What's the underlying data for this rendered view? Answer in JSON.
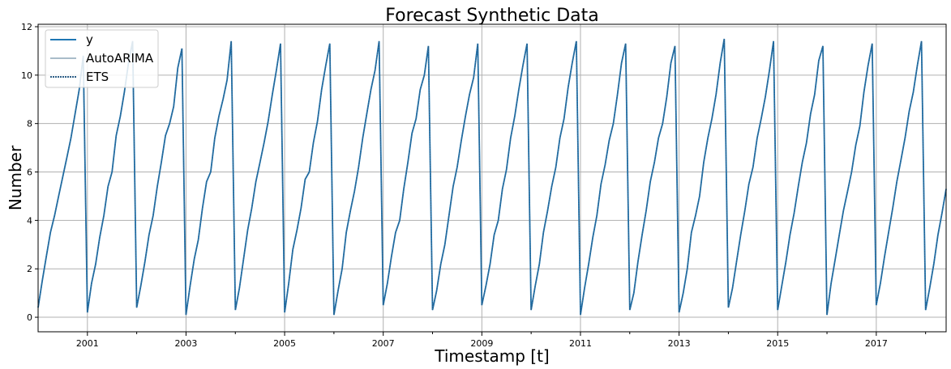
{
  "chart_data": {
    "type": "line",
    "title": "Forecast Synthetic Data",
    "xlabel": "Timestamp [t]",
    "ylabel": "Number",
    "xlim": [
      "2000-01",
      "2018-06"
    ],
    "ylim": [
      -0.6,
      12.1
    ],
    "yticks": [
      0,
      2,
      4,
      6,
      8,
      10,
      12
    ],
    "xticks": [
      "2001",
      "2003",
      "2005",
      "2007",
      "2009",
      "2011",
      "2013",
      "2015",
      "2017"
    ],
    "grid": true,
    "legend_position": "top-left",
    "monthly_start": "2000-01",
    "series": [
      {
        "name": "y",
        "color": "#1f77b4",
        "values": [
          0.4,
          1.5,
          2.5,
          3.5,
          4.2,
          5.0,
          5.8,
          6.6,
          7.4,
          8.4,
          9.4,
          10.8,
          0.2,
          1.4,
          2.2,
          3.3,
          4.2,
          5.4,
          6.0,
          7.5,
          8.3,
          9.3,
          10.5,
          11.4,
          0.4,
          1.3,
          2.3,
          3.4,
          4.2,
          5.4,
          6.4,
          7.5,
          8.0,
          8.7,
          10.3,
          11.1,
          0.1,
          1.3,
          2.4,
          3.2,
          4.5,
          5.6,
          6.0,
          7.4,
          8.3,
          9.0,
          9.8,
          11.4,
          0.3,
          1.2,
          2.4,
          3.6,
          4.5,
          5.6,
          6.4,
          7.2,
          8.1,
          9.2,
          10.2,
          11.3,
          0.2,
          1.4,
          2.8,
          3.6,
          4.5,
          5.7,
          6.0,
          7.2,
          8.1,
          9.4,
          10.4,
          11.3,
          0.1,
          1.1,
          2.0,
          3.5,
          4.4,
          5.2,
          6.2,
          7.4,
          8.4,
          9.4,
          10.2,
          11.4,
          0.5,
          1.4,
          2.5,
          3.5,
          4.0,
          5.3,
          6.4,
          7.6,
          8.2,
          9.4,
          10.0,
          11.2,
          0.3,
          1.1,
          2.2,
          3.0,
          4.2,
          5.4,
          6.2,
          7.3,
          8.3,
          9.2,
          9.9,
          11.3,
          0.5,
          1.3,
          2.2,
          3.4,
          4.0,
          5.3,
          6.1,
          7.4,
          8.3,
          9.4,
          10.4,
          11.3,
          0.3,
          1.3,
          2.2,
          3.5,
          4.4,
          5.4,
          6.2,
          7.4,
          8.2,
          9.5,
          10.5,
          11.4,
          0.1,
          1.2,
          2.2,
          3.3,
          4.2,
          5.5,
          6.3,
          7.3,
          8.0,
          9.2,
          10.5,
          11.3,
          0.3,
          1.0,
          2.3,
          3.4,
          4.4,
          5.6,
          6.4,
          7.4,
          8.0,
          9.1,
          10.5,
          11.2,
          0.2,
          1.0,
          2.0,
          3.5,
          4.2,
          5.0,
          6.4,
          7.4,
          8.2,
          9.2,
          10.5,
          11.5,
          0.4,
          1.2,
          2.3,
          3.4,
          4.4,
          5.5,
          6.2,
          7.4,
          8.2,
          9.1,
          10.2,
          11.4,
          0.3,
          1.3,
          2.3,
          3.4,
          4.3,
          5.4,
          6.4,
          7.2,
          8.4,
          9.2,
          10.6,
          11.2,
          0.1,
          1.4,
          2.4,
          3.4,
          4.4,
          5.2,
          6.0,
          7.1,
          7.9,
          9.3,
          10.4,
          11.3,
          0.5,
          1.4,
          2.5,
          3.5,
          4.5,
          5.6,
          6.5,
          7.4,
          8.5,
          9.3,
          10.4,
          11.4,
          0.3,
          1.2,
          2.2,
          3.4,
          4.3,
          5.3
        ]
      },
      {
        "name": "AutoARIMA",
        "color": "#a9bcc9"
      },
      {
        "name": "ETS",
        "color": "#2c5e86"
      }
    ]
  }
}
